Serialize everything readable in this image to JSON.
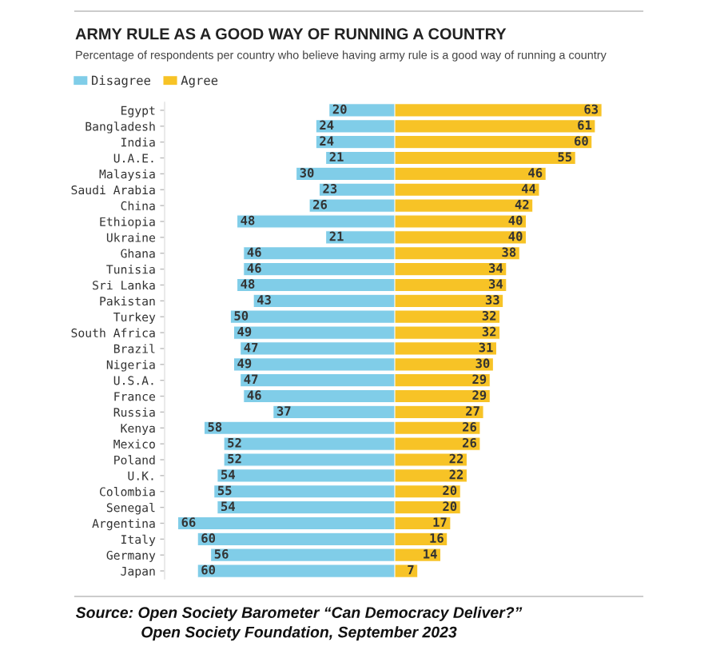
{
  "chart_data": [
    {
      "type": "bar",
      "orientation": "horizontal",
      "title": "ARMY RULE AS A GOOD WAY OF RUNNING A COUNTRY",
      "subtitle": "Percentage of respondents per country who believe having army rule is a good way of running a country",
      "categories": [
        "Egypt",
        "Bangladesh",
        "India",
        "U.A.E.",
        "Malaysia",
        "Saudi Arabia",
        "China",
        "Ethiopia",
        "Ukraine",
        "Ghana",
        "Tunisia",
        "Sri Lanka",
        "Pakistan",
        "Turkey",
        "South Africa",
        "Brazil",
        "Nigeria",
        "U.S.A.",
        "France",
        "Russia",
        "Kenya",
        "Mexico",
        "Poland",
        "U.K.",
        "Colombia",
        "Senegal",
        "Argentina",
        "Italy",
        "Germany",
        "Japan"
      ],
      "series": [
        {
          "name": "Disagree",
          "color": "#80cde8",
          "values": [
            20,
            24,
            24,
            21,
            30,
            23,
            26,
            48,
            21,
            46,
            46,
            48,
            43,
            50,
            49,
            47,
            49,
            47,
            46,
            37,
            58,
            52,
            52,
            54,
            55,
            54,
            66,
            60,
            56,
            60
          ]
        }
      ],
      "xlim": [
        70,
        0
      ],
      "data_labels": true,
      "legend": "top left",
      "tick_labels": "y",
      "annotations": [
        "Source: Open Society Barometer “Can Democracy Deliver?”\nOpen Society Foundation, September 2023"
      ]
    },
    {
      "type": "bar",
      "orientation": "horizontal",
      "categories": [
        null,
        null,
        null,
        null,
        null,
        null,
        null,
        null,
        null,
        null,
        null,
        null,
        null,
        null,
        null,
        null,
        null,
        null,
        null,
        null,
        null,
        null,
        null,
        null,
        null,
        null,
        null,
        null,
        null,
        null
      ],
      "series": [
        {
          "name": "Agree",
          "color": "#f7c326",
          "values": [
            63,
            61,
            60,
            55,
            46,
            44,
            42,
            40,
            40,
            38,
            34,
            34,
            33,
            32,
            32,
            31,
            30,
            29,
            29,
            27,
            26,
            26,
            22,
            22,
            20,
            20,
            17,
            16,
            14,
            7
          ]
        }
      ],
      "data_labels": true,
      "legend": "top left",
      "tick_labels": false
    }
  ]
}
